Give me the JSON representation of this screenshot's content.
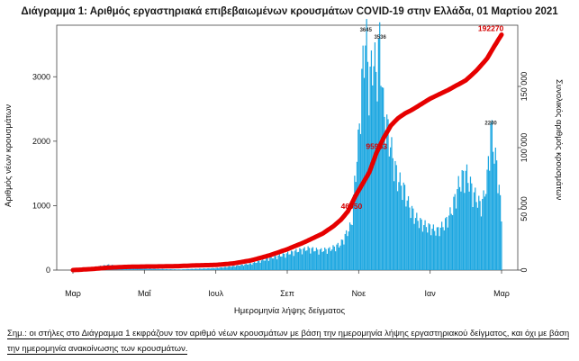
{
  "chart_data": {
    "type": "bar",
    "title": "Διάγραμμα 1: Αριθμός εργαστηριακά επιβεβαιωμένων κρουσμάτων COVID-19 στην Ελλάδα, 01 Μαρτίου 2021",
    "xlabel": "Ημερομηνία λήψης δείγματος",
    "ylabel": "Αριθμός νέων κρουσμάτων",
    "y2label": "Συνολικός αριθμός κρουσμάτων",
    "ylim": [
      0,
      3800
    ],
    "y2lim": [
      0,
      200000
    ],
    "yticks": [
      0,
      1000,
      2000,
      3000
    ],
    "y2ticks": [
      0,
      50000,
      100000,
      150000
    ],
    "y2tick_labels": [
      "0",
      "50 000",
      "100 000",
      "150 000"
    ],
    "month_labels": [
      "Μαρ",
      "Μαΐ",
      "Ιουλ",
      "Σεπ",
      "Νοε",
      "Ιαν",
      "Μαρ"
    ],
    "month_positions": [
      0,
      2,
      4,
      6,
      8,
      10,
      12
    ],
    "x_months_total": 12,
    "series": [
      {
        "name": "Νέα κρούσματα",
        "kind": "bar",
        "color": "#1aa6e0",
        "months": [
          0.0,
          0.5,
          1.0,
          1.5,
          2.0,
          2.5,
          3.0,
          3.5,
          4.0,
          4.5,
          5.0,
          5.5,
          6.0,
          6.3,
          6.6,
          6.9,
          7.2,
          7.5,
          7.8,
          7.9,
          8.0,
          8.1,
          8.2,
          8.3,
          8.4,
          8.5,
          8.6,
          8.7,
          8.8,
          8.9,
          9.0,
          9.1,
          9.2,
          9.3,
          9.4,
          9.5,
          9.6,
          9.8,
          10.0,
          10.2,
          10.4,
          10.6,
          10.8,
          11.0,
          11.2,
          11.4,
          11.5,
          11.6,
          11.7,
          11.8,
          11.9,
          12.0
        ],
        "values": [
          10,
          40,
          80,
          50,
          20,
          15,
          10,
          20,
          30,
          60,
          100,
          180,
          250,
          300,
          330,
          300,
          320,
          400,
          700,
          1400,
          2000,
          3000,
          3645,
          2800,
          3300,
          3000,
          3536,
          2400,
          2200,
          1900,
          1600,
          1400,
          1300,
          1200,
          1000,
          900,
          800,
          700,
          650,
          600,
          700,
          900,
          1300,
          1500,
          1200,
          1000,
          1100,
          1400,
          2200,
          1800,
          1500,
          800
        ]
      },
      {
        "name": "Συνολικός αριθμός κρουσμάτων",
        "kind": "line",
        "axis": "right",
        "color": "#e60000",
        "months": [
          0,
          0.5,
          1.0,
          1.5,
          2.0,
          2.5,
          3.0,
          3.5,
          4.0,
          4.5,
          5.0,
          5.5,
          6.0,
          6.5,
          7.0,
          7.3,
          7.5,
          7.7,
          7.9,
          8.1,
          8.3,
          8.5,
          8.7,
          8.9,
          9.1,
          9.3,
          9.5,
          10.0,
          10.5,
          11.0,
          11.3,
          11.6,
          11.8,
          12.0
        ],
        "values": [
          0,
          800,
          2000,
          2600,
          2900,
          3000,
          3300,
          3900,
          4200,
          5500,
          8000,
          12000,
          17000,
          23000,
          30000,
          36000,
          41000,
          48000,
          60000,
          70000,
          80000,
          95953,
          108000,
          118000,
          124000,
          128000,
          131000,
          140000,
          147000,
          155000,
          163000,
          173000,
          183000,
          192270
        ]
      }
    ],
    "annotations": [
      {
        "text": "192270",
        "month": 11.7,
        "value": 192270,
        "axis": "right"
      },
      {
        "text": "95953",
        "month": 8.5,
        "value": 95953,
        "axis": "right"
      },
      {
        "text": "46950",
        "month": 7.8,
        "value": 46950,
        "axis": "right"
      },
      {
        "text": "3645",
        "month": 8.2,
        "value": 3645,
        "axis": "left"
      },
      {
        "text": "3536",
        "month": 8.6,
        "value": 3536,
        "axis": "left"
      },
      {
        "text": "2200",
        "month": 11.7,
        "value": 2200,
        "axis": "left"
      }
    ]
  },
  "footnote": "Σημ.: οι στήλες στο Διάγραμμα 1 εκφράζουν τον αριθμό νέων κρουσμάτων με βάση την ημερομηνία λήψης εργαστηριακού δείγματος, και όχι με βάση την ημερομηνία ανακοίνωσης των κρουσμάτων."
}
